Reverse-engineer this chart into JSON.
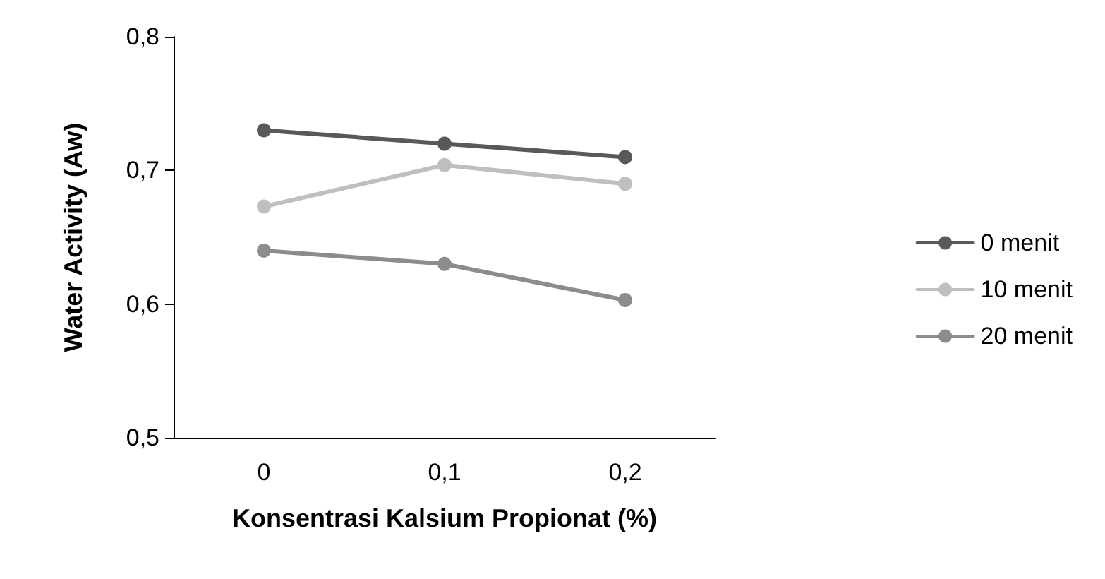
{
  "chart_data": {
    "type": "line",
    "xlabel": "Konsentrasi Kalsium Propionat (%)",
    "ylabel": "Water Activity (Aw)",
    "categories": [
      "0",
      "0,1",
      "0,2"
    ],
    "series": [
      {
        "name": "0 menit",
        "color": "#595959",
        "values": [
          0.73,
          0.72,
          0.71
        ]
      },
      {
        "name": "10 menit",
        "color": "#bfbfbf",
        "values": [
          0.673,
          0.704,
          0.69
        ]
      },
      {
        "name": "20 menit",
        "color": "#8c8c8c",
        "values": [
          0.64,
          0.63,
          0.603
        ]
      }
    ],
    "ylim": [
      0.5,
      0.8
    ],
    "yticks": [
      {
        "value": 0.5,
        "label": "0,5"
      },
      {
        "value": 0.6,
        "label": "0,6"
      },
      {
        "value": 0.7,
        "label": "0,7"
      },
      {
        "value": 0.8,
        "label": "0,8"
      }
    ],
    "grid": false,
    "legend": "right",
    "marker": "circle",
    "line_style": "solid"
  }
}
